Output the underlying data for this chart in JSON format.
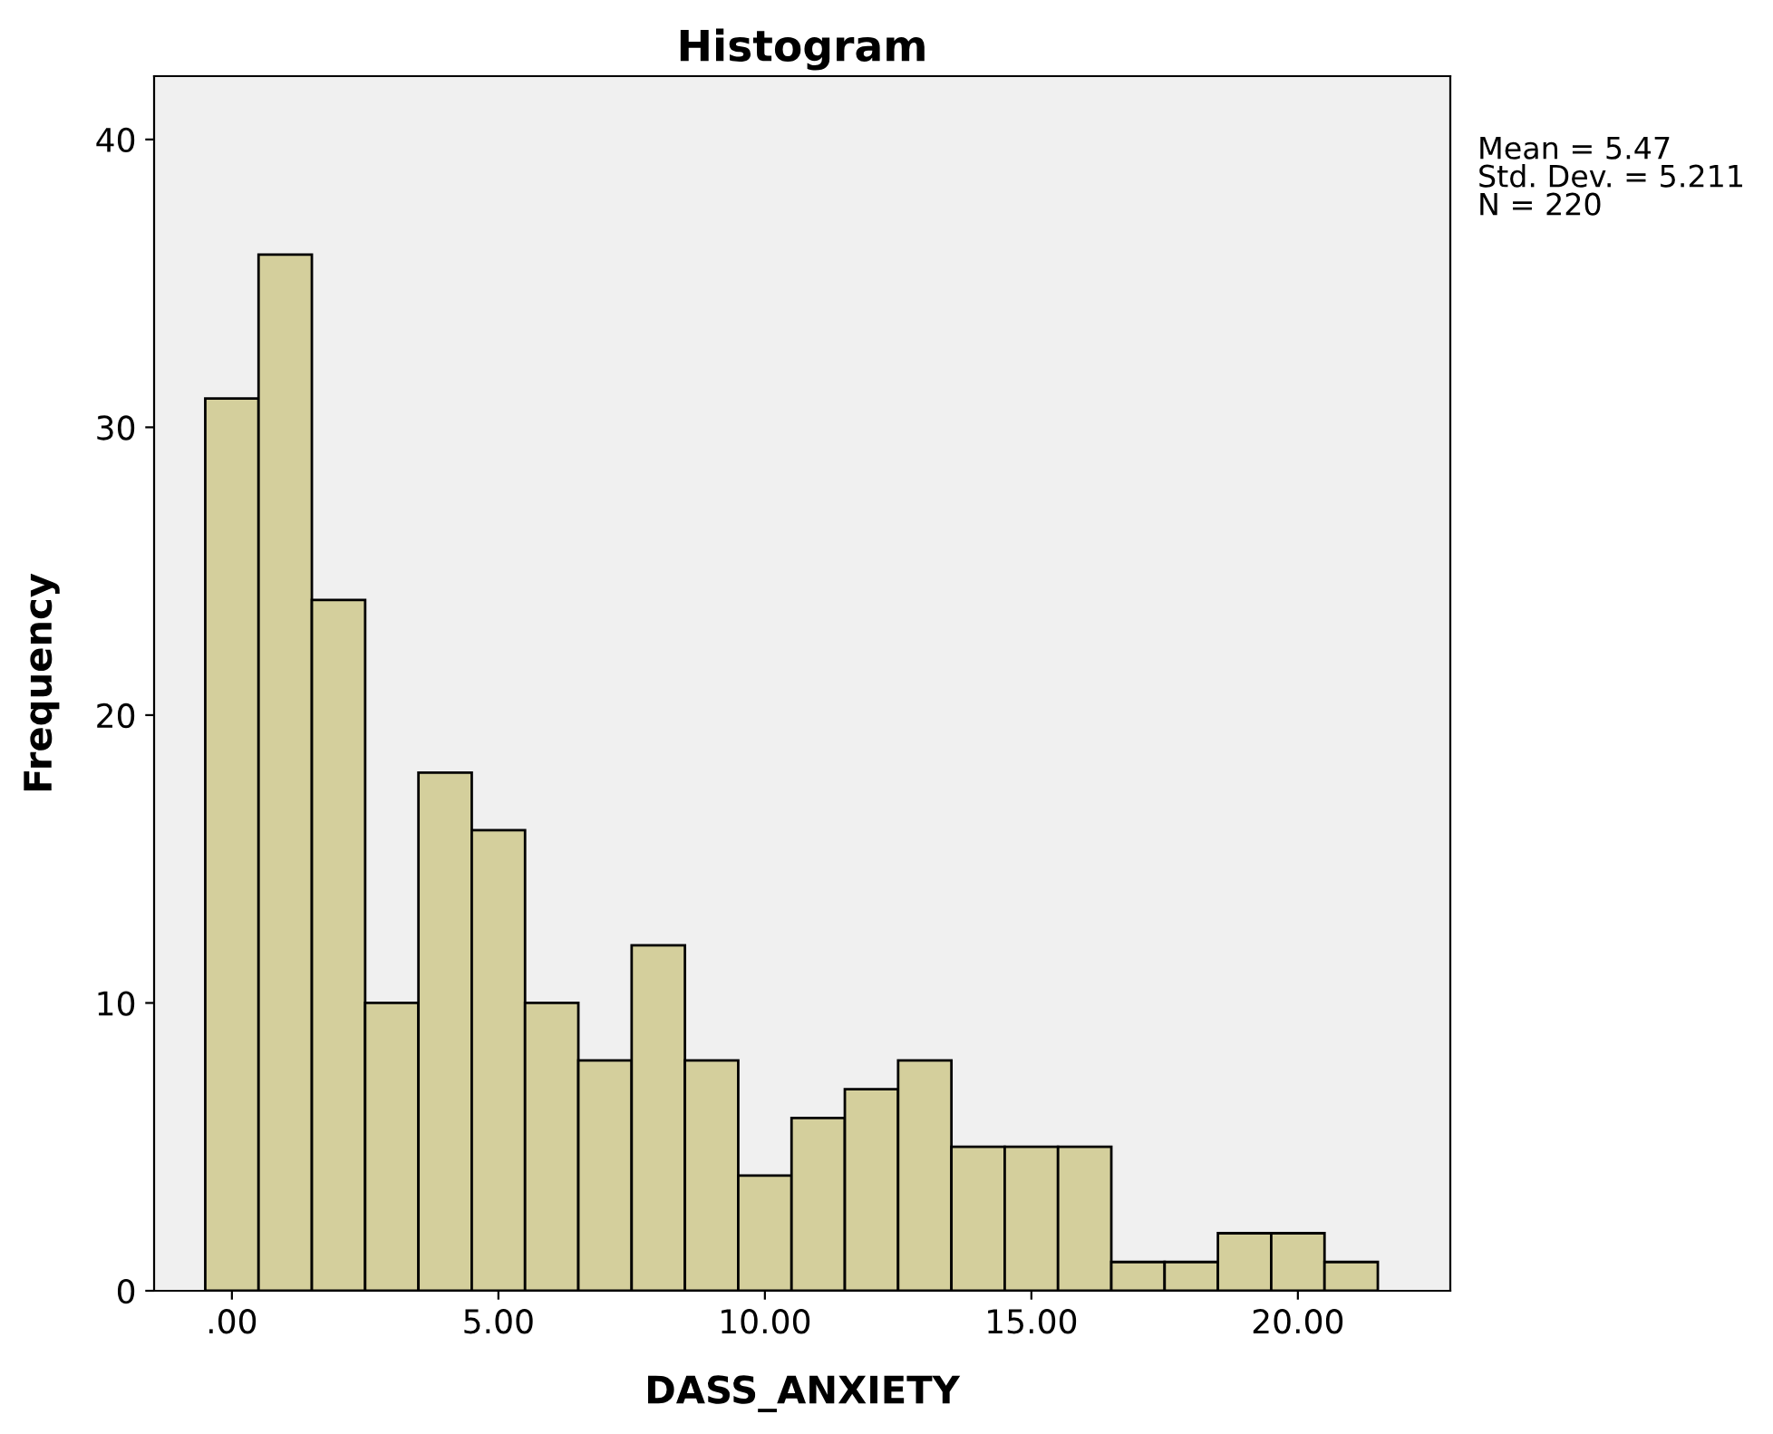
{
  "chart_data": {
    "type": "histogram",
    "title": "Histogram",
    "xlabel": "DASS_ANXIETY",
    "ylabel": "Frequency",
    "bins": [
      -0.5,
      0.5,
      1.5,
      2.5,
      3.5,
      4.5,
      5.5,
      6.5,
      7.5,
      8.5,
      9.5,
      10.5,
      11.5,
      12.5,
      13.5,
      14.5,
      15.5,
      16.5,
      17.5,
      18.5,
      19.5,
      20.5,
      21.5
    ],
    "values": [
      31,
      36,
      24,
      10,
      18,
      16,
      10,
      8,
      12,
      8,
      4,
      6,
      7,
      8,
      5,
      5,
      5,
      1,
      1,
      2,
      2,
      1
    ],
    "color": "#d4cf9c",
    "xlim": [
      -1.46,
      22.86
    ],
    "ylim": [
      0,
      42.2
    ],
    "xticks": [
      {
        "value": 0,
        "label": ".00"
      },
      {
        "value": 5,
        "label": "5.00"
      },
      {
        "value": 10,
        "label": "10.00"
      },
      {
        "value": 15,
        "label": "15.00"
      },
      {
        "value": 20,
        "label": "20.00"
      }
    ],
    "yticks": [
      0,
      10,
      20,
      30,
      40
    ],
    "grid": false,
    "annotations": [
      "Mean = 5.47\nStd. Dev. = 5.211\nN = 220"
    ]
  }
}
